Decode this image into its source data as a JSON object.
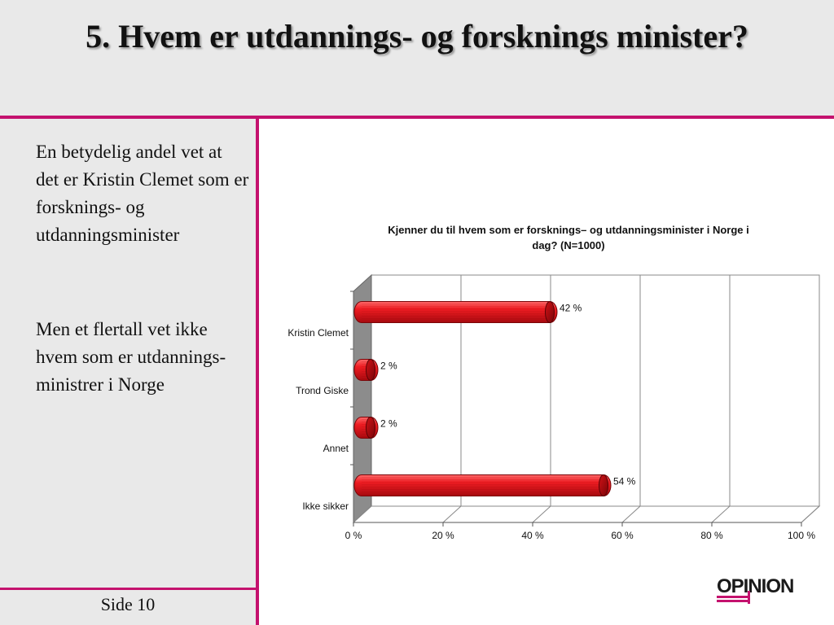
{
  "slide": {
    "title": "5. Hvem er utdannings- og forsknings minister?",
    "paragraph1": "En betydelig andel vet at det er Kristin Clemet som er forsknings- og utdanningsminister",
    "paragraph2": "Men et flertall vet ikke hvem som er utdannings-ministrer i Norge",
    "page_label": "Side 10",
    "logo_text": "OPINION"
  },
  "colors": {
    "accent": "#c4126e",
    "bar": "#e8121a",
    "background": "#e9e9e9"
  },
  "chart_data": {
    "type": "bar",
    "orientation": "horizontal",
    "title": "Kjenner du til hvem som er forsknings– og utdanningsminister i Norge i dag? (N=1000)",
    "categories": [
      "Kristin Clemet",
      "Trond Giske",
      "Annet",
      "Ikke sikker"
    ],
    "values": [
      42,
      2,
      2,
      54
    ],
    "data_labels": [
      "42 %",
      "2 %",
      "2 %",
      "54 %"
    ],
    "xlim": [
      0,
      100
    ],
    "x_ticks": [
      0,
      20,
      40,
      60,
      80,
      100
    ],
    "x_tick_labels": [
      "0 %",
      "20 %",
      "40 %",
      "60 %",
      "80 %",
      "100 %"
    ],
    "grid": true,
    "style": "3d-cylinder"
  }
}
